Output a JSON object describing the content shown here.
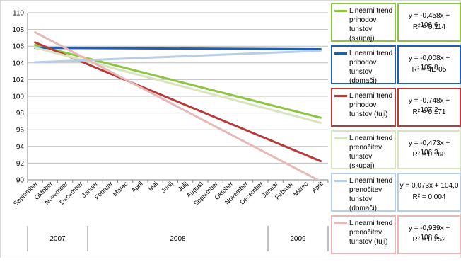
{
  "chart_data": {
    "type": "line",
    "categories": [
      "September",
      "Oktober",
      "November",
      "December",
      "Januar",
      "Februar",
      "Marec",
      "April",
      "Maj",
      "Junij",
      "Julij",
      "August",
      "September",
      "Oktober",
      "November",
      "December",
      "Januar",
      "Februar",
      "Marec",
      "April"
    ],
    "year_groups": [
      {
        "label": "2007",
        "start": 0,
        "end": 3
      },
      {
        "label": "2008",
        "start": 4,
        "end": 15
      },
      {
        "label": "2009",
        "start": 16,
        "end": 19
      }
    ],
    "title": "",
    "ylim": [
      90,
      110
    ],
    "yticks": [
      90,
      92,
      94,
      96,
      98,
      100,
      102,
      104,
      106,
      108,
      110
    ],
    "grid": true,
    "legend_position": "right",
    "series": [
      {
        "name": "Linearni trend prihodov turistov (skupaj)",
        "label_lines": [
          "Linearni trend",
          "prihodov",
          "turistov",
          "(skupaj)"
        ],
        "color": "#8CC63F",
        "slope": -0.458,
        "intercept": 106.6,
        "equation": "y = -0,458x + 106,6",
        "r2": "R² = 0,114"
      },
      {
        "name": "Linearni trend prihodov turistov (domači)",
        "label_lines": [
          "Linearni trend",
          "prihodov",
          "turistov",
          "(domači)"
        ],
        "color": "#1F5FAD",
        "slope": -0.008,
        "intercept": 105.8,
        "equation": "y = -0,008x + 105,8",
        "r2": "R² = 4E-05"
      },
      {
        "name": "Linearni trend prihodov turistov (tuji)",
        "label_lines": [
          "Linearni trend",
          "prihodov",
          "turistov (tuji)"
        ],
        "color": "#B83B3B",
        "slope": -0.748,
        "intercept": 107.2,
        "equation": "y = -0,748x + 107,2",
        "r2": "R² = 0,171"
      },
      {
        "name": "Linearni trend prenočitev turistov (skupaj)",
        "label_lines": [
          "Linearni trend",
          "prenočitev",
          "turistov",
          "(skupaj)"
        ],
        "color": "#D7E4BD",
        "slope": -0.473,
        "intercept": 106.3,
        "equation": "y = -0,473x + 106,3",
        "r2": "R² = 0,168"
      },
      {
        "name": "Linearni trend prenočitev turistov (domači)",
        "label_lines": [
          "Linearni trend",
          "prenočitev",
          "turistov",
          "(domači)"
        ],
        "color": "#B9CDE5",
        "slope": 0.073,
        "intercept": 104.0,
        "equation": "y = 0,073x + 104,0",
        "r2": "R² = 0,004"
      },
      {
        "name": "Linearni trend prenočitev turistov (tuji)",
        "label_lines": [
          "Linearni trend",
          "prenočitev",
          "turistov (tuji)"
        ],
        "color": "#E6B9B8",
        "slope": -0.939,
        "intercept": 108.6,
        "equation": "y = -0,939x + 108,6",
        "r2": "R² = 0,252"
      }
    ]
  }
}
